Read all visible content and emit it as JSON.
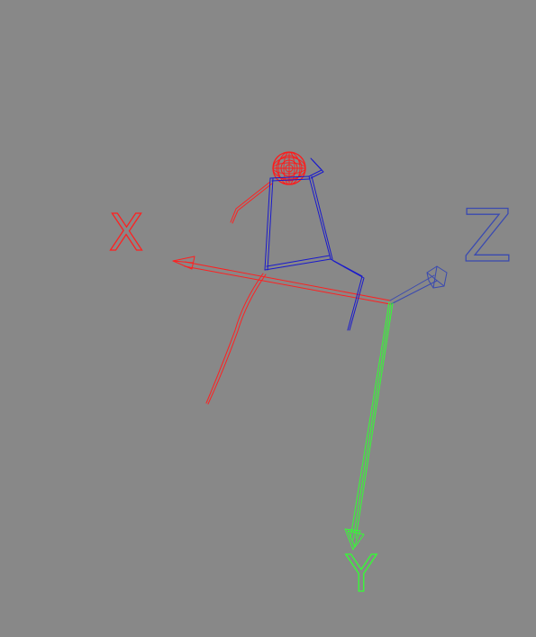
{
  "viewport": {
    "background": "#888888"
  },
  "axes": {
    "x": {
      "label": "X",
      "color": "#ff2020"
    },
    "y": {
      "label": "Y",
      "color": "#33ff33"
    },
    "z": {
      "label": "Z",
      "color": "#3a3aaa"
    }
  },
  "figure": {
    "head_color": "#ff1a1a",
    "left_limb_color": "#ff2020",
    "body_color": "#1a1acc"
  }
}
